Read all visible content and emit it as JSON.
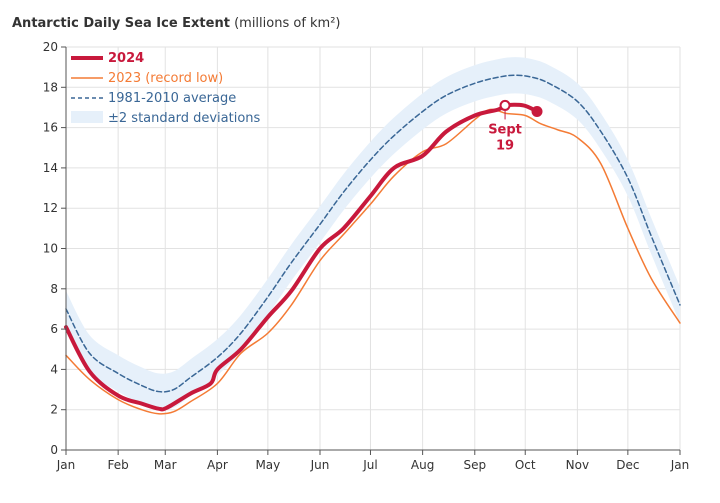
{
  "chart_data": {
    "type": "line",
    "title": "Antarctic Daily Sea Ice Extent",
    "title_units": "(millions of km²)",
    "ylim": [
      0,
      20
    ],
    "yticks": [
      0,
      2,
      4,
      6,
      8,
      10,
      12,
      14,
      16,
      18,
      20
    ],
    "xlim_day": [
      0,
      365
    ],
    "xticks": [
      {
        "label": "Jan",
        "day": 0
      },
      {
        "label": "Feb",
        "day": 31
      },
      {
        "label": "Mar",
        "day": 59
      },
      {
        "label": "Apr",
        "day": 90
      },
      {
        "label": "May",
        "day": 120
      },
      {
        "label": "Jun",
        "day": 151
      },
      {
        "label": "Jul",
        "day": 181
      },
      {
        "label": "Aug",
        "day": 212
      },
      {
        "label": "Sep",
        "day": 243
      },
      {
        "label": "Oct",
        "day": 273
      },
      {
        "label": "Nov",
        "day": 304
      },
      {
        "label": "Dec",
        "day": 334
      },
      {
        "label": "Jan",
        "day": 365
      }
    ],
    "grid": true,
    "legend_position": "top-left",
    "colors": {
      "y2024": "#c8193c",
      "y2023": "#f47b35",
      "avg": "#3a6796",
      "band": "#e6f0fa"
    },
    "legend": [
      "2024",
      "2023 (record low)",
      "1981-2010 average",
      "±2 standard deviations"
    ],
    "series": [
      {
        "name": "1981-2010 average",
        "x": [
          0,
          14,
          31,
          45,
          55,
          64,
          74,
          90,
          104,
          120,
          134,
          151,
          165,
          181,
          195,
          212,
          226,
          243,
          257,
          267,
          277,
          287,
          304,
          318,
          334,
          348,
          365
        ],
        "values": [
          7.0,
          4.8,
          3.8,
          3.2,
          2.9,
          3.0,
          3.6,
          4.6,
          5.8,
          7.6,
          9.3,
          11.2,
          12.8,
          14.4,
          15.6,
          16.8,
          17.6,
          18.2,
          18.5,
          18.6,
          18.5,
          18.2,
          17.3,
          15.8,
          13.5,
          10.6,
          7.2
        ]
      },
      {
        "name": "2023 (record low)",
        "x": [
          0,
          14,
          31,
          45,
          55,
          64,
          74,
          90,
          104,
          120,
          134,
          151,
          165,
          181,
          195,
          212,
          226,
          243,
          252,
          262,
          273,
          282,
          292,
          304,
          318,
          334,
          348,
          365
        ],
        "values": [
          4.7,
          3.5,
          2.5,
          2.0,
          1.8,
          1.9,
          2.4,
          3.3,
          4.8,
          5.8,
          7.2,
          9.4,
          10.7,
          12.2,
          13.6,
          14.8,
          15.2,
          16.4,
          16.9,
          16.7,
          16.6,
          16.2,
          15.9,
          15.5,
          14.2,
          11.0,
          8.5,
          6.3
        ]
      },
      {
        "name": "2024",
        "x": [
          0,
          14,
          31,
          45,
          55,
          60,
          74,
          86,
          90,
          104,
          120,
          134,
          151,
          165,
          181,
          195,
          212,
          226,
          243,
          257,
          261,
          272,
          280
        ],
        "values": [
          6.1,
          3.9,
          2.7,
          2.3,
          2.05,
          2.1,
          2.8,
          3.3,
          4.0,
          5.0,
          6.6,
          7.9,
          10.0,
          11.0,
          12.6,
          14.0,
          14.6,
          15.8,
          16.6,
          16.9,
          17.1,
          17.1,
          16.8
        ]
      }
    ],
    "sd_halfwidth": 0.9,
    "annotation": {
      "label_line1": "Sept",
      "label_line2": "19",
      "day": 261,
      "value": 17.1
    }
  }
}
